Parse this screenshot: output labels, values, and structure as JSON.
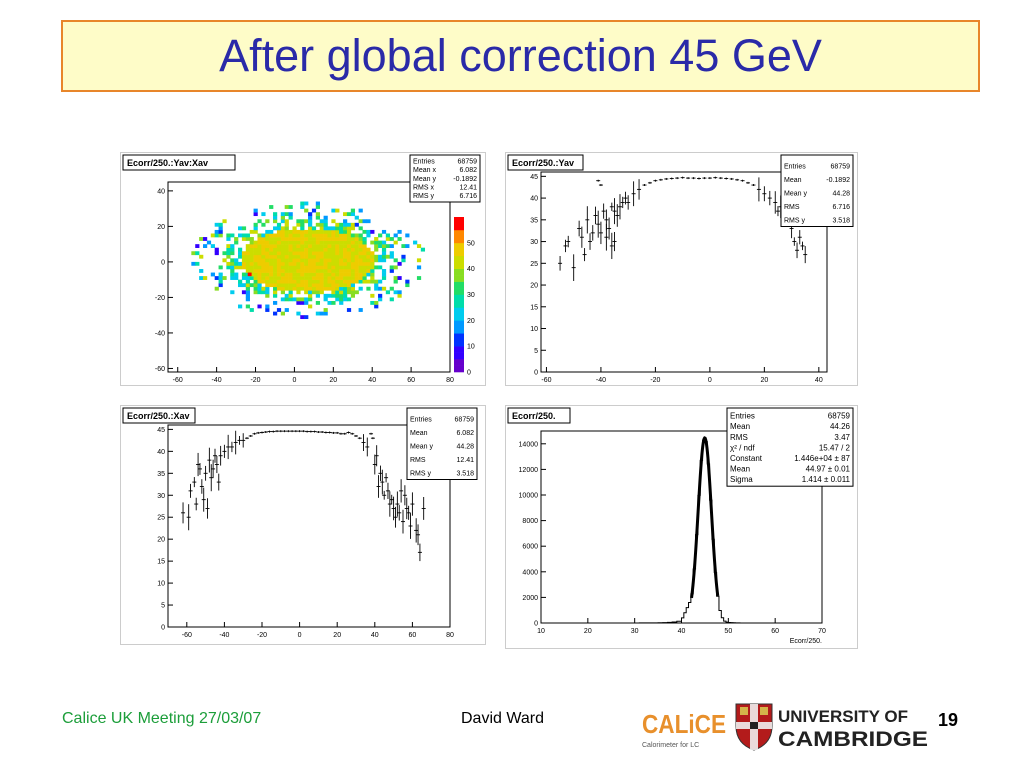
{
  "slide": {
    "title": "After global correction 45 GeV",
    "footer_left": "Calice UK Meeting 27/03/07",
    "footer_center": "David Ward",
    "page_number": "19",
    "calice_logo": {
      "text": "CALiCE",
      "tagline": "Calorimeter for LC"
    },
    "cambridge_logo": {
      "line1": "UNIVERSITY OF",
      "line2": "CAMBRIDGE"
    },
    "colors": {
      "title": "#2a2aa8",
      "title_bg": "#fefcc8",
      "title_border": "#e8862a",
      "footer_left": "#1c9e3a"
    }
  },
  "chart_data": [
    {
      "type": "heatmap",
      "title": "Ecorr/250.:Yav:Xav",
      "xlim": [
        -65,
        80
      ],
      "ylim": [
        -62,
        45
      ],
      "xticks": [
        -60,
        -40,
        -20,
        0,
        20,
        40,
        60,
        80
      ],
      "yticks": [
        -60,
        -40,
        -20,
        0,
        20,
        40
      ],
      "zlim": [
        0,
        60
      ],
      "zticks": [
        0,
        10,
        20,
        30,
        40,
        50
      ],
      "cluster": {
        "x_center": 6,
        "y_center": 0,
        "x_rms": 12.41,
        "y_rms": 6.716,
        "typical_z": 44
      },
      "stats": [
        [
          "Entries",
          "68759"
        ],
        [
          "Mean x",
          "6.082"
        ],
        [
          "Mean y",
          "-0.1892"
        ],
        [
          "RMS x",
          "12.41"
        ],
        [
          "RMS y",
          "6.716"
        ]
      ]
    },
    {
      "type": "scatter",
      "title": "Ecorr/250.:Yav",
      "xlim": [
        -62,
        43
      ],
      "ylim": [
        0,
        46
      ],
      "xticks": [
        -60,
        -40,
        -20,
        0,
        20,
        40
      ],
      "yticks": [
        0,
        5,
        10,
        15,
        20,
        25,
        30,
        35,
        40,
        45
      ],
      "points": [
        [
          -55,
          25
        ],
        [
          -53,
          29
        ],
        [
          -50,
          24
        ],
        [
          -48,
          33
        ],
        [
          -47,
          31
        ],
        [
          -46,
          27
        ],
        [
          -45,
          35
        ],
        [
          -44,
          30
        ],
        [
          -43,
          32
        ],
        [
          -42,
          36
        ],
        [
          -41,
          34
        ],
        [
          -40,
          32
        ],
        [
          -39,
          37
        ],
        [
          -38,
          35
        ],
        [
          -37,
          33
        ],
        [
          -36,
          38
        ],
        [
          -35,
          37
        ],
        [
          -34,
          36
        ],
        [
          -33,
          38
        ],
        [
          -32,
          39
        ],
        [
          -31,
          40
        ],
        [
          -30,
          39
        ],
        [
          -28,
          41
        ],
        [
          -26,
          42
        ],
        [
          -24,
          43
        ],
        [
          -22,
          43.5
        ],
        [
          -20,
          44
        ],
        [
          -18,
          44.2
        ],
        [
          -16,
          44.4
        ],
        [
          -14,
          44.5
        ],
        [
          -12,
          44.6
        ],
        [
          -10,
          44.7
        ],
        [
          -8,
          44.6
        ],
        [
          -6,
          44.6
        ],
        [
          -4,
          44.5
        ],
        [
          -2,
          44.6
        ],
        [
          0,
          44.6
        ],
        [
          2,
          44.7
        ],
        [
          4,
          44.6
        ],
        [
          6,
          44.5
        ],
        [
          8,
          44.4
        ],
        [
          10,
          44.2
        ],
        [
          12,
          44
        ],
        [
          14,
          43.5
        ],
        [
          16,
          43
        ],
        [
          18,
          42
        ],
        [
          20,
          41
        ],
        [
          22,
          40
        ],
        [
          24,
          39
        ],
        [
          25,
          37
        ],
        [
          26,
          38
        ],
        [
          27,
          36
        ],
        [
          28,
          37
        ],
        [
          29,
          35
        ],
        [
          30,
          33
        ],
        [
          31,
          30
        ],
        [
          32,
          28
        ],
        [
          33,
          31
        ],
        [
          34,
          29
        ],
        [
          35,
          27
        ],
        [
          -41,
          44
        ],
        [
          -52,
          30
        ],
        [
          -40,
          43
        ],
        [
          -38,
          31
        ],
        [
          -36,
          29
        ],
        [
          -35,
          30
        ]
      ],
      "stats": [
        [
          "Entries",
          "68759"
        ],
        [
          "Mean",
          "-0.1892"
        ],
        [
          "Mean y",
          "44.28"
        ],
        [
          "RMS",
          "6.716"
        ],
        [
          "RMS y",
          "3.518"
        ]
      ]
    },
    {
      "type": "scatter",
      "title": "Ecorr/250.:Xav",
      "xlim": [
        -70,
        80
      ],
      "ylim": [
        0,
        46
      ],
      "xticks": [
        -60,
        -40,
        -20,
        0,
        20,
        40,
        60,
        80
      ],
      "yticks": [
        0,
        5,
        10,
        15,
        20,
        25,
        30,
        35,
        40,
        45
      ],
      "points": [
        [
          -62,
          26
        ],
        [
          -59,
          25
        ],
        [
          -58,
          31
        ],
        [
          -56,
          33
        ],
        [
          -55,
          28
        ],
        [
          -54,
          37
        ],
        [
          -53,
          36
        ],
        [
          -52,
          32
        ],
        [
          -51,
          29
        ],
        [
          -50,
          35
        ],
        [
          -49,
          27
        ],
        [
          -48,
          38
        ],
        [
          -47,
          34
        ],
        [
          -46,
          36
        ],
        [
          -45,
          39
        ],
        [
          -44,
          37
        ],
        [
          -43,
          33
        ],
        [
          -42,
          39
        ],
        [
          -40,
          40
        ],
        [
          -38,
          41
        ],
        [
          -36,
          41
        ],
        [
          -34,
          42
        ],
        [
          -32,
          42.5
        ],
        [
          -30,
          42.5
        ],
        [
          -28,
          43
        ],
        [
          -26,
          43.5
        ],
        [
          -24,
          44
        ],
        [
          -22,
          44.2
        ],
        [
          -20,
          44.3
        ],
        [
          -18,
          44.4
        ],
        [
          -16,
          44.5
        ],
        [
          -14,
          44.5
        ],
        [
          -12,
          44.6
        ],
        [
          -10,
          44.6
        ],
        [
          -8,
          44.6
        ],
        [
          -6,
          44.6
        ],
        [
          -4,
          44.6
        ],
        [
          -2,
          44.6
        ],
        [
          0,
          44.6
        ],
        [
          2,
          44.6
        ],
        [
          4,
          44.5
        ],
        [
          6,
          44.5
        ],
        [
          8,
          44.5
        ],
        [
          10,
          44.4
        ],
        [
          12,
          44.4
        ],
        [
          14,
          44.3
        ],
        [
          16,
          44.3
        ],
        [
          18,
          44.2
        ],
        [
          20,
          44.2
        ],
        [
          22,
          44
        ],
        [
          24,
          44
        ],
        [
          26,
          44.3
        ],
        [
          28,
          44
        ],
        [
          30,
          43.5
        ],
        [
          32,
          43
        ],
        [
          34,
          42
        ],
        [
          36,
          41
        ],
        [
          38,
          44
        ],
        [
          39,
          43
        ],
        [
          40,
          37
        ],
        [
          41,
          39
        ],
        [
          42,
          32
        ],
        [
          43,
          35
        ],
        [
          44,
          33
        ],
        [
          45,
          30
        ],
        [
          46,
          34
        ],
        [
          47,
          31
        ],
        [
          48,
          28
        ],
        [
          49,
          29
        ],
        [
          50,
          27
        ],
        [
          51,
          25
        ],
        [
          52,
          28
        ],
        [
          53,
          26
        ],
        [
          54,
          31
        ],
        [
          55,
          24
        ],
        [
          56,
          30
        ],
        [
          57,
          27
        ],
        [
          58,
          26
        ],
        [
          59,
          23
        ],
        [
          60,
          28
        ],
        [
          62,
          22
        ],
        [
          63,
          21
        ],
        [
          64,
          17
        ],
        [
          66,
          27
        ]
      ],
      "stats": [
        [
          "Entries",
          "68759"
        ],
        [
          "Mean",
          "6.082"
        ],
        [
          "Mean y",
          "44.28"
        ],
        [
          "RMS",
          "12.41"
        ],
        [
          "RMS y",
          "3.518"
        ]
      ]
    },
    {
      "type": "bar",
      "title": "Ecorr/250.",
      "xlabel": "Ecorr/250.",
      "xlim": [
        10,
        70
      ],
      "ylim": [
        0,
        15000
      ],
      "xticks": [
        10,
        20,
        30,
        40,
        50,
        60,
        70
      ],
      "yticks": [
        0,
        2000,
        4000,
        6000,
        8000,
        10000,
        12000,
        14000
      ],
      "bin_width": 0.5,
      "gaussian": {
        "constant": 14460,
        "mean": 44.97,
        "sigma": 1.414
      },
      "tail": [
        [
          26,
          2
        ],
        [
          28,
          3
        ],
        [
          30,
          4
        ],
        [
          32,
          6
        ],
        [
          34,
          10
        ],
        [
          35,
          14
        ],
        [
          36,
          20
        ],
        [
          37,
          30
        ],
        [
          38,
          50
        ],
        [
          39,
          80
        ],
        [
          40,
          140
        ]
      ],
      "stats": [
        [
          "Entries",
          "68759"
        ],
        [
          "Mean",
          "44.26"
        ],
        [
          "RMS",
          "3.47"
        ],
        [
          "χ² / ndf",
          "15.47 / 2"
        ],
        [
          "Constant",
          "1.446e+04 ± 87"
        ],
        [
          "Mean",
          "44.97 ± 0.01"
        ],
        [
          "Sigma",
          "1.414 ± 0.011"
        ]
      ]
    }
  ]
}
